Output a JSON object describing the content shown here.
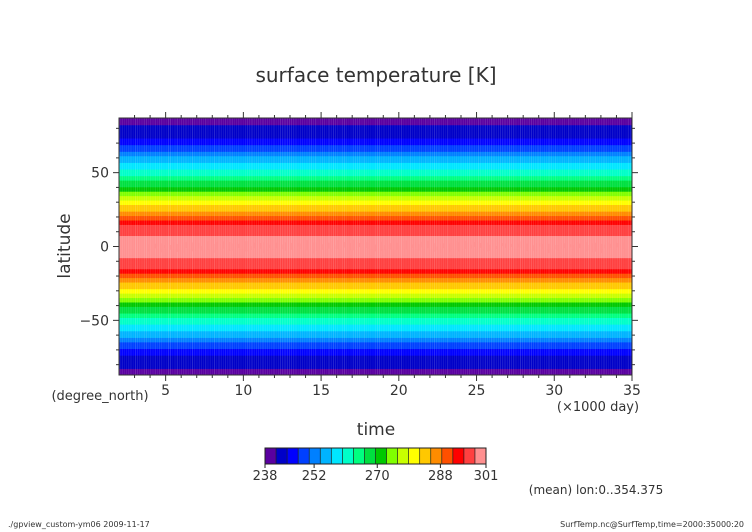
{
  "chart_data": {
    "type": "heatmap",
    "title": "surface temperature [K]",
    "xlabel": "time",
    "xunit": "(×1000 day)",
    "ylabel": "latitude",
    "yunit": "(degree_north)",
    "xlim": [
      2,
      35
    ],
    "ylim": [
      -87,
      87
    ],
    "x_ticks": [
      5,
      10,
      15,
      20,
      25,
      30,
      35
    ],
    "y_ticks": [
      -50,
      0,
      50
    ],
    "colorbar": {
      "min": 238,
      "max": 301,
      "tick_labels": [
        "238",
        "252",
        "270",
        "288",
        "301"
      ],
      "tick_values": [
        238,
        252,
        270,
        288,
        301
      ],
      "colors": [
        "#5a00a0",
        "#0000c8",
        "#0000ff",
        "#0040ff",
        "#0080ff",
        "#00b4ff",
        "#00e6ff",
        "#00ffc8",
        "#00ff80",
        "#00e040",
        "#00c800",
        "#80ff00",
        "#c8ff00",
        "#ffff00",
        "#ffc800",
        "#ff8c00",
        "#ff5000",
        "#ff0000",
        "#ff4040",
        "#ff9090"
      ]
    },
    "latitude_profile": {
      "lat": [
        -87,
        -75,
        -62,
        -50,
        -38,
        -25,
        -12,
        0,
        12,
        25,
        38,
        50,
        62,
        75,
        87
      ],
      "temperature": [
        240,
        243,
        253,
        262,
        272,
        285,
        297,
        299,
        297,
        285,
        272,
        262,
        253,
        243,
        240
      ]
    }
  },
  "annotations": {
    "mean_note": "(mean) lon:0..354.375",
    "footer_left": "./gpview_custom-ym06  2009-11-17",
    "footer_right": "SurfTemp.nc@SurfTemp,time=2000:35000:20"
  }
}
